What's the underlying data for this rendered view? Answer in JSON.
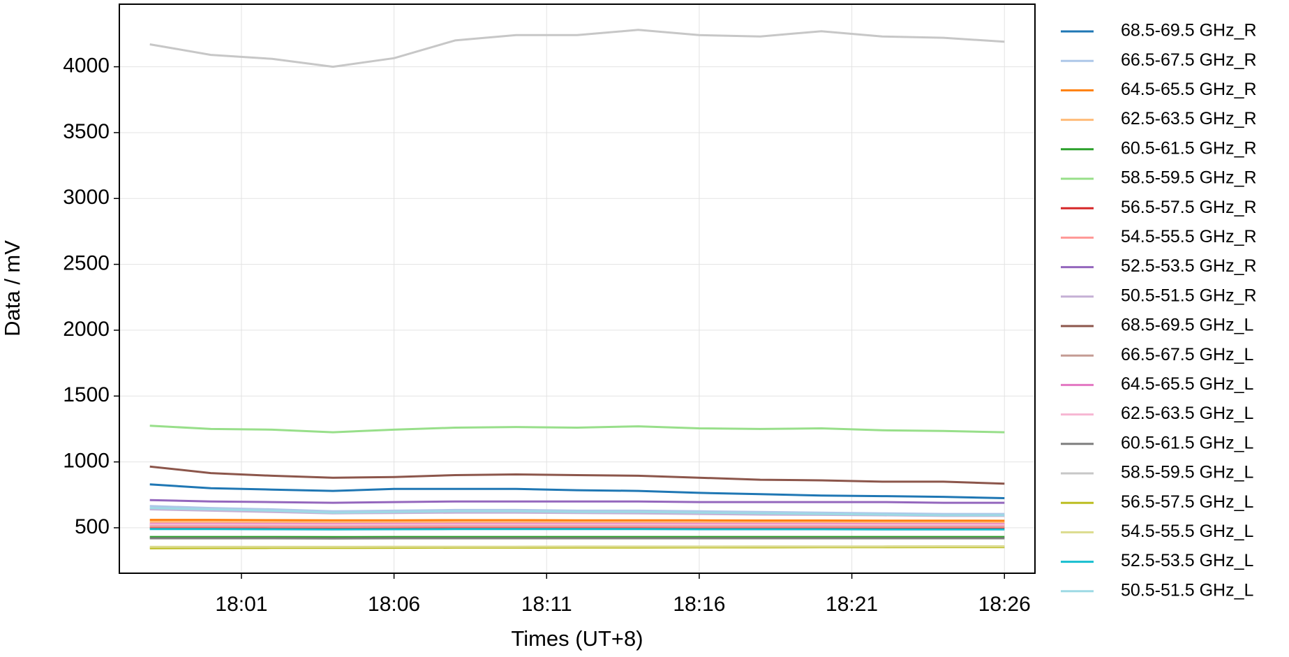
{
  "chart_data": {
    "type": "line",
    "xlabel": "Times (UT+8)",
    "ylabel": "Data / mV",
    "x": [
      "17:58",
      "18:00",
      "18:02",
      "18:04",
      "18:06",
      "18:08",
      "18:10",
      "18:12",
      "18:14",
      "18:16",
      "18:18",
      "18:20",
      "18:22",
      "18:24",
      "18:26"
    ],
    "xlim": [
      "17:57",
      "18:27"
    ],
    "xticks": [
      "18:01",
      "18:06",
      "18:11",
      "18:16",
      "18:21",
      "18:26"
    ],
    "ylim": [
      155,
      4475
    ],
    "yticks": [
      500,
      1000,
      1500,
      2000,
      2500,
      3000,
      3500,
      4000
    ],
    "grid": true,
    "legend": "outside right",
    "series": [
      {
        "name": "68.5-69.5 GHz_R",
        "color": "#1f77b4",
        "values": [
          830,
          800,
          790,
          780,
          795,
          795,
          795,
          785,
          780,
          765,
          755,
          745,
          740,
          735,
          725
        ]
      },
      {
        "name": "66.5-67.5 GHz_R",
        "color": "#aec7e8",
        "values": [
          665,
          650,
          640,
          625,
          630,
          635,
          635,
          630,
          630,
          625,
          620,
          615,
          610,
          605,
          605
        ]
      },
      {
        "name": "64.5-65.5 GHz_R",
        "color": "#ff7f0e",
        "values": [
          560,
          560,
          558,
          556,
          557,
          558,
          558,
          557,
          557,
          556,
          555,
          555,
          554,
          554,
          553
        ]
      },
      {
        "name": "62.5-63.5 GHz_R",
        "color": "#ffbb78",
        "values": [
          545,
          545,
          543,
          541,
          542,
          543,
          543,
          542,
          542,
          541,
          540,
          540,
          539,
          539,
          538
        ]
      },
      {
        "name": "60.5-61.5 GHz_R",
        "color": "#2ca02c",
        "values": [
          430,
          430,
          430,
          429,
          430,
          430,
          430,
          430,
          430,
          430,
          430,
          430,
          430,
          430,
          430
        ]
      },
      {
        "name": "58.5-59.5 GHz_R",
        "color": "#98df8a",
        "values": [
          1275,
          1250,
          1245,
          1225,
          1245,
          1260,
          1265,
          1260,
          1270,
          1255,
          1250,
          1255,
          1240,
          1235,
          1225
        ]
      },
      {
        "name": "56.5-57.5 GHz_R",
        "color": "#d62728",
        "values": [
          500,
          500,
          499,
          498,
          499,
          500,
          500,
          500,
          500,
          499,
          499,
          499,
          498,
          498,
          498
        ]
      },
      {
        "name": "54.5-55.5 GHz_R",
        "color": "#ff9896",
        "values": [
          510,
          510,
          509,
          508,
          509,
          510,
          510,
          510,
          510,
          509,
          509,
          509,
          508,
          508,
          508
        ]
      },
      {
        "name": "52.5-53.5 GHz_R",
        "color": "#9467bd",
        "values": [
          710,
          700,
          695,
          690,
          695,
          700,
          700,
          700,
          700,
          695,
          695,
          695,
          695,
          690,
          690
        ]
      },
      {
        "name": "50.5-51.5 GHz_R",
        "color": "#c5b0d5",
        "values": [
          640,
          630,
          620,
          610,
          612,
          615,
          615,
          612,
          610,
          605,
          600,
          598,
          595,
          590,
          590
        ]
      },
      {
        "name": "68.5-69.5 GHz_L",
        "color": "#8c564b",
        "values": [
          965,
          915,
          895,
          880,
          885,
          900,
          905,
          900,
          895,
          880,
          865,
          860,
          850,
          850,
          835
        ]
      },
      {
        "name": "66.5-67.5 GHz_L",
        "color": "#c49c94",
        "values": [
          520,
          520,
          519,
          518,
          519,
          520,
          520,
          520,
          520,
          519,
          519,
          519,
          518,
          518,
          518
        ]
      },
      {
        "name": "64.5-65.5 GHz_L",
        "color": "#e377c2",
        "values": [
          530,
          530,
          529,
          528,
          529,
          530,
          530,
          530,
          530,
          529,
          529,
          529,
          528,
          528,
          528
        ]
      },
      {
        "name": "62.5-63.5 GHz_L",
        "color": "#f7b6d2",
        "values": [
          525,
          525,
          524,
          523,
          524,
          525,
          525,
          525,
          525,
          524,
          524,
          524,
          523,
          523,
          523
        ]
      },
      {
        "name": "60.5-61.5 GHz_L",
        "color": "#7f7f7f",
        "values": [
          420,
          420,
          420,
          419,
          420,
          420,
          420,
          420,
          420,
          420,
          420,
          420,
          420,
          420,
          420
        ]
      },
      {
        "name": "58.5-59.5 GHz_L",
        "color": "#c7c7c7",
        "values": [
          4170,
          4090,
          4060,
          4000,
          4065,
          4200,
          4240,
          4240,
          4280,
          4240,
          4230,
          4270,
          4230,
          4220,
          4190
        ]
      },
      {
        "name": "56.5-57.5 GHz_L",
        "color": "#bcbd22",
        "values": [
          345,
          346,
          347,
          347,
          348,
          349,
          349,
          350,
          350,
          351,
          351,
          352,
          352,
          353,
          353
        ]
      },
      {
        "name": "54.5-55.5 GHz_L",
        "color": "#dbdb8d",
        "values": [
          355,
          355,
          355,
          355,
          356,
          356,
          356,
          357,
          357,
          357,
          358,
          358,
          358,
          359,
          359
        ]
      },
      {
        "name": "52.5-53.5 GHz_L",
        "color": "#17becf",
        "values": [
          490,
          490,
          489,
          488,
          489,
          490,
          490,
          490,
          490,
          489,
          489,
          489,
          488,
          488,
          488
        ]
      },
      {
        "name": "50.5-51.5 GHz_L",
        "color": "#9edae5",
        "values": [
          650,
          640,
          630,
          615,
          620,
          625,
          625,
          620,
          620,
          615,
          610,
          605,
          600,
          595,
          595
        ]
      }
    ]
  }
}
